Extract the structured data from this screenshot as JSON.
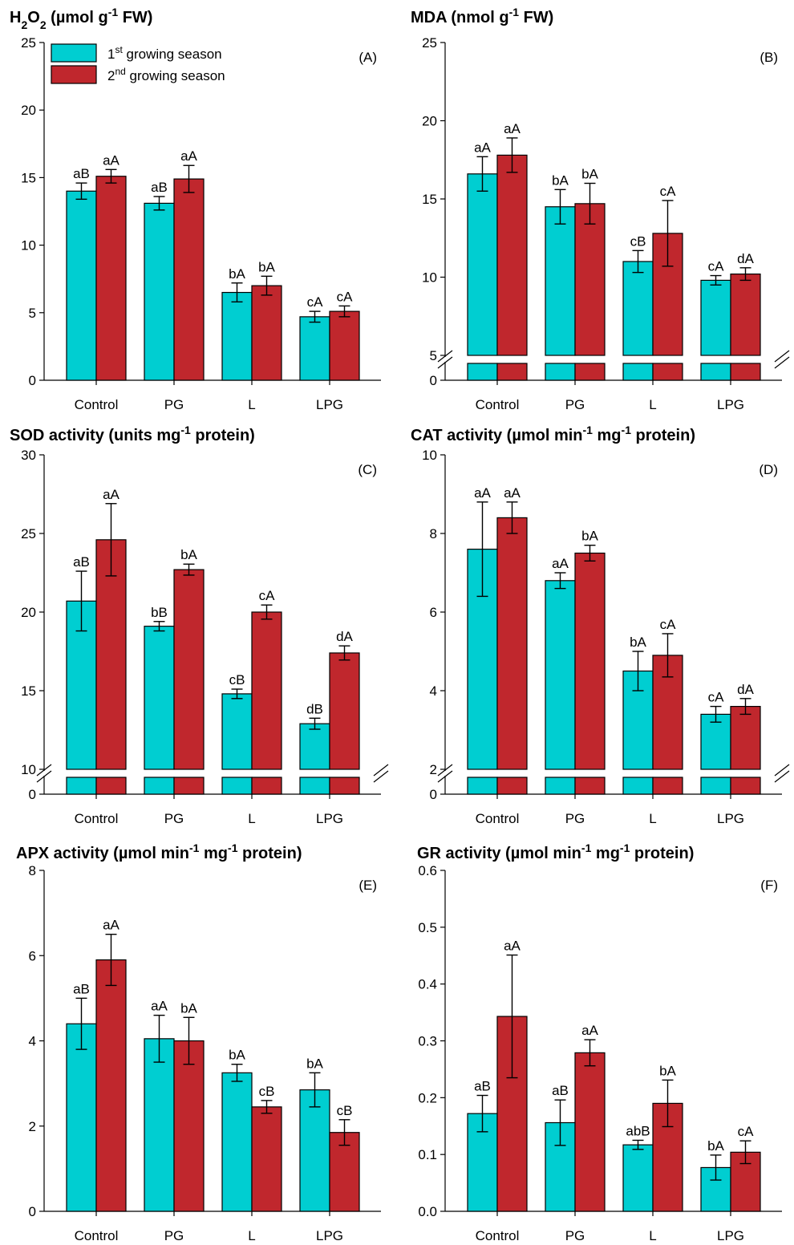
{
  "colors": {
    "season1": "#00CED1",
    "season2": "#C0272D"
  },
  "legend": {
    "season1": {
      "pre": "1",
      "sup": "st",
      "post": " growing season"
    },
    "season2": {
      "pre": "2",
      "sup": "nd",
      "post": " growing season"
    }
  },
  "categories": [
    "Control",
    "PG",
    "L",
    "LPG"
  ],
  "chart_data": [
    {
      "type": "bar",
      "panel_label": "(A)",
      "title_html": "H<tspan baseline-shift='sub' font-size='14'>2</tspan>O<tspan baseline-shift='sub' font-size='14'>2</tspan> (µmol g<tspan baseline-shift='super' font-size='14'>-1</tspan> FW)",
      "title": "H2O2 (µmol g-1 FW)",
      "ylim": [
        0,
        25
      ],
      "yticks": [
        "0",
        "5",
        "10",
        "15",
        "20",
        "25"
      ],
      "axis_break": false,
      "legend": true,
      "series": [
        {
          "values": [
            14.0,
            13.1,
            6.5,
            4.7
          ],
          "errors": [
            0.6,
            0.5,
            0.7,
            0.4
          ],
          "labels": [
            "aB",
            "aB",
            "bA",
            "cA"
          ]
        },
        {
          "values": [
            15.1,
            14.9,
            7.0,
            5.1
          ],
          "errors": [
            0.5,
            1.0,
            0.7,
            0.4
          ],
          "labels": [
            "aA",
            "aA",
            "bA",
            "cA"
          ]
        }
      ]
    },
    {
      "type": "bar",
      "panel_label": "(B)",
      "title_html": "MDA (nmol g<tspan baseline-shift='super' font-size='14'>-1</tspan> FW)",
      "title": "MDA (nmol g-1 FW)",
      "ylim": [
        5,
        25
      ],
      "yticks": [
        "5",
        "10",
        "15",
        "20",
        "25"
      ],
      "axis_break": true,
      "break_zero": "0",
      "legend": false,
      "series": [
        {
          "values": [
            16.6,
            14.5,
            11.0,
            9.8
          ],
          "errors": [
            1.1,
            1.1,
            0.7,
            0.3
          ],
          "labels": [
            "aA",
            "bA",
            "cB",
            "cA"
          ]
        },
        {
          "values": [
            17.8,
            14.7,
            12.8,
            10.2
          ],
          "errors": [
            1.1,
            1.3,
            2.1,
            0.4
          ],
          "labels": [
            "aA",
            "bA",
            "cA",
            "dA"
          ]
        }
      ]
    },
    {
      "type": "bar",
      "panel_label": "(C)",
      "title_html": "SOD activity (units mg<tspan baseline-shift='super' font-size='14'>-1</tspan> protein)",
      "title": "SOD activity (units mg-1 protein)",
      "ylim": [
        10,
        30
      ],
      "yticks": [
        "10",
        "15",
        "20",
        "25",
        "30"
      ],
      "axis_break": true,
      "break_zero": "0",
      "legend": false,
      "series": [
        {
          "values": [
            20.7,
            19.1,
            14.8,
            12.9
          ],
          "errors": [
            1.9,
            0.3,
            0.3,
            0.35
          ],
          "labels": [
            "aB",
            "bB",
            "cB",
            "dB"
          ]
        },
        {
          "values": [
            24.6,
            22.7,
            20.0,
            17.4
          ],
          "errors": [
            2.3,
            0.35,
            0.45,
            0.45
          ],
          "labels": [
            "aA",
            "bA",
            "cA",
            "dA"
          ]
        }
      ]
    },
    {
      "type": "bar",
      "panel_label": "(D)",
      "title_html": "CAT activity (µmol min<tspan baseline-shift='super' font-size='14'>-1</tspan> mg<tspan baseline-shift='super' font-size='14'>-1</tspan> protein)",
      "title": "CAT activity (µmol min-1 mg-1 protein)",
      "ylim": [
        2,
        10
      ],
      "yticks": [
        "2",
        "4",
        "6",
        "8",
        "10"
      ],
      "axis_break": true,
      "break_zero": "0",
      "legend": false,
      "series": [
        {
          "values": [
            7.6,
            6.8,
            4.5,
            3.4
          ],
          "errors": [
            1.2,
            0.2,
            0.5,
            0.2
          ],
          "labels": [
            "aA",
            "aA",
            "bA",
            "cA"
          ]
        },
        {
          "values": [
            8.4,
            7.5,
            4.9,
            3.6
          ],
          "errors": [
            0.4,
            0.2,
            0.55,
            0.2
          ],
          "labels": [
            "aA",
            "bA",
            "cA",
            "dA"
          ]
        }
      ]
    },
    {
      "type": "bar",
      "panel_label": "(E)",
      "title_html": "APX activity (µmol min<tspan baseline-shift='super' font-size='14'>-1</tspan> mg<tspan baseline-shift='super' font-size='14'>-1</tspan> protein)",
      "title": "APX activity (µmol min-1 mg-1 protein)",
      "ylim": [
        0,
        8
      ],
      "yticks": [
        "0",
        "2",
        "4",
        "6",
        "8"
      ],
      "axis_break": false,
      "legend": false,
      "series": [
        {
          "values": [
            4.4,
            4.05,
            3.25,
            2.85
          ],
          "errors": [
            0.6,
            0.55,
            0.2,
            0.4
          ],
          "labels": [
            "aB",
            "aA",
            "bA",
            "bA"
          ]
        },
        {
          "values": [
            5.9,
            4.0,
            2.45,
            1.85
          ],
          "errors": [
            0.6,
            0.55,
            0.15,
            0.3
          ],
          "labels": [
            "aA",
            "bA",
            "cB",
            "cB"
          ]
        }
      ]
    },
    {
      "type": "bar",
      "panel_label": "(F)",
      "title_html": "GR activity (µmol min<tspan baseline-shift='super' font-size='14'>-1</tspan> mg<tspan baseline-shift='super' font-size='14'>-1</tspan> protein)",
      "title": "GR activity (µmol min-1 mg-1 protein)",
      "ylim": [
        0,
        0.6
      ],
      "yticks": [
        "0.0",
        "0.1",
        "0.2",
        "0.3",
        "0.4",
        "0.5",
        "0.6"
      ],
      "axis_break": false,
      "legend": false,
      "series": [
        {
          "values": [
            0.172,
            0.156,
            0.117,
            0.077
          ],
          "errors": [
            0.032,
            0.04,
            0.008,
            0.022
          ],
          "labels": [
            "aB",
            "aB",
            "abB",
            "bA"
          ]
        },
        {
          "values": [
            0.343,
            0.279,
            0.19,
            0.104
          ],
          "errors": [
            0.108,
            0.023,
            0.041,
            0.02
          ],
          "labels": [
            "aA",
            "aA",
            "bA",
            "cA"
          ]
        }
      ]
    }
  ]
}
